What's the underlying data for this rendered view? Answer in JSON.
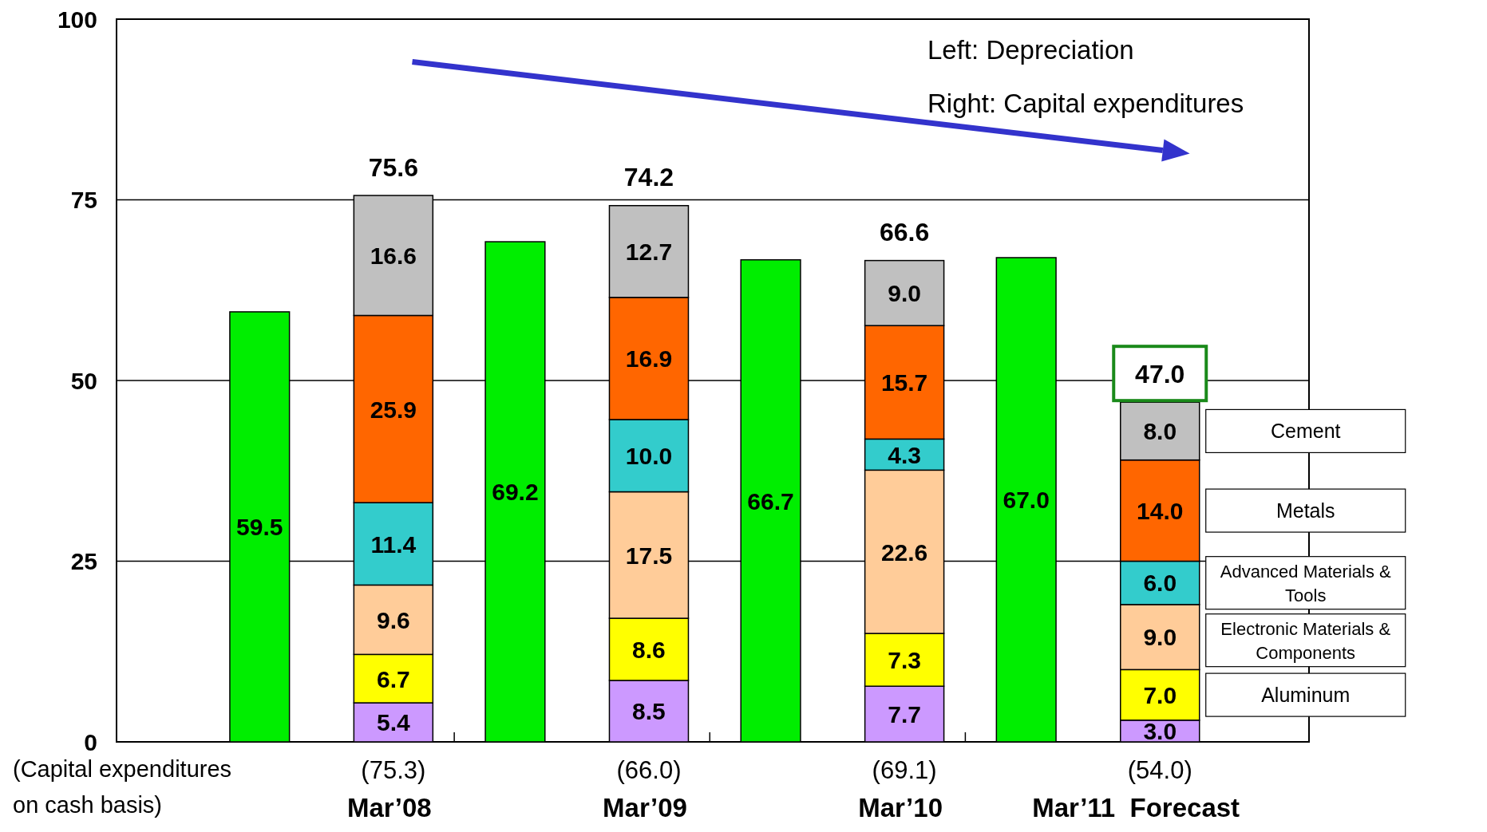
{
  "chart_data": {
    "type": "bar",
    "stacked": true,
    "categories": [
      null,
      "Mar’08",
      null,
      "Mar’09",
      null,
      "Mar’10",
      null,
      "Mar’11  Forecast"
    ],
    "series": [
      {
        "color": "#00ee00",
        "values": [
          59.5,
          null,
          69.2,
          null,
          66.7,
          null,
          67.0,
          null
        ],
        "value_labels": [
          "59.5",
          null,
          "69.2",
          null,
          "66.7",
          null,
          "67.0",
          null
        ]
      },
      {
        "color": "#cc99ff",
        "values": [
          null,
          5.4,
          null,
          8.5,
          null,
          7.7,
          null,
          3.0
        ],
        "value_labels": [
          null,
          "5.4",
          null,
          "8.5",
          null,
          "7.7",
          null,
          "3.0"
        ]
      },
      {
        "name": "Aluminum",
        "color": "#ffff00",
        "values": [
          null,
          6.7,
          null,
          8.6,
          null,
          7.3,
          null,
          7.0
        ],
        "value_labels": [
          null,
          "6.7",
          null,
          "8.6",
          null,
          "7.3",
          null,
          "7.0"
        ]
      },
      {
        "name": "Electronic Materials & Components",
        "color": "#ffcc99",
        "values": [
          null,
          9.6,
          null,
          17.5,
          null,
          22.6,
          null,
          9.0
        ],
        "value_labels": [
          null,
          "9.6",
          null,
          "17.5",
          null,
          "22.6",
          null,
          "9.0"
        ]
      },
      {
        "name": "Advanced Materials & Tools",
        "color": "#33cccc",
        "values": [
          null,
          11.4,
          null,
          10.0,
          null,
          4.3,
          null,
          6.0
        ],
        "value_labels": [
          null,
          "11.4",
          null,
          "10.0",
          null,
          "4.3",
          null,
          "6.0"
        ]
      },
      {
        "name": "Metals",
        "color": "#ff6600",
        "values": [
          null,
          25.9,
          null,
          16.9,
          null,
          15.7,
          null,
          14.0
        ],
        "value_labels": [
          null,
          "25.9",
          null,
          "16.9",
          null,
          "15.7",
          null,
          "14.0"
        ]
      },
      {
        "name": "Cement",
        "color": "#c0c0c0",
        "values": [
          null,
          16.6,
          null,
          12.7,
          null,
          9.0,
          null,
          8.0
        ],
        "value_labels": [
          null,
          "16.6",
          null,
          "12.7",
          null,
          "9.0",
          null,
          "8.0"
        ]
      }
    ],
    "totals": [
      null,
      "75.6",
      null,
      "74.2",
      null,
      "66.6",
      null,
      "47.0"
    ],
    "ylim": [
      0,
      100
    ],
    "yticks": [
      0,
      25,
      50,
      75,
      100
    ],
    "grid": "y",
    "annotations": [
      "Left: Depreciation",
      "Right: Capital expenditures",
      "(Capital expenditures\non cash basis)",
      "(75.3)",
      "(66.0)",
      "(69.1)",
      "(54.0)"
    ]
  }
}
